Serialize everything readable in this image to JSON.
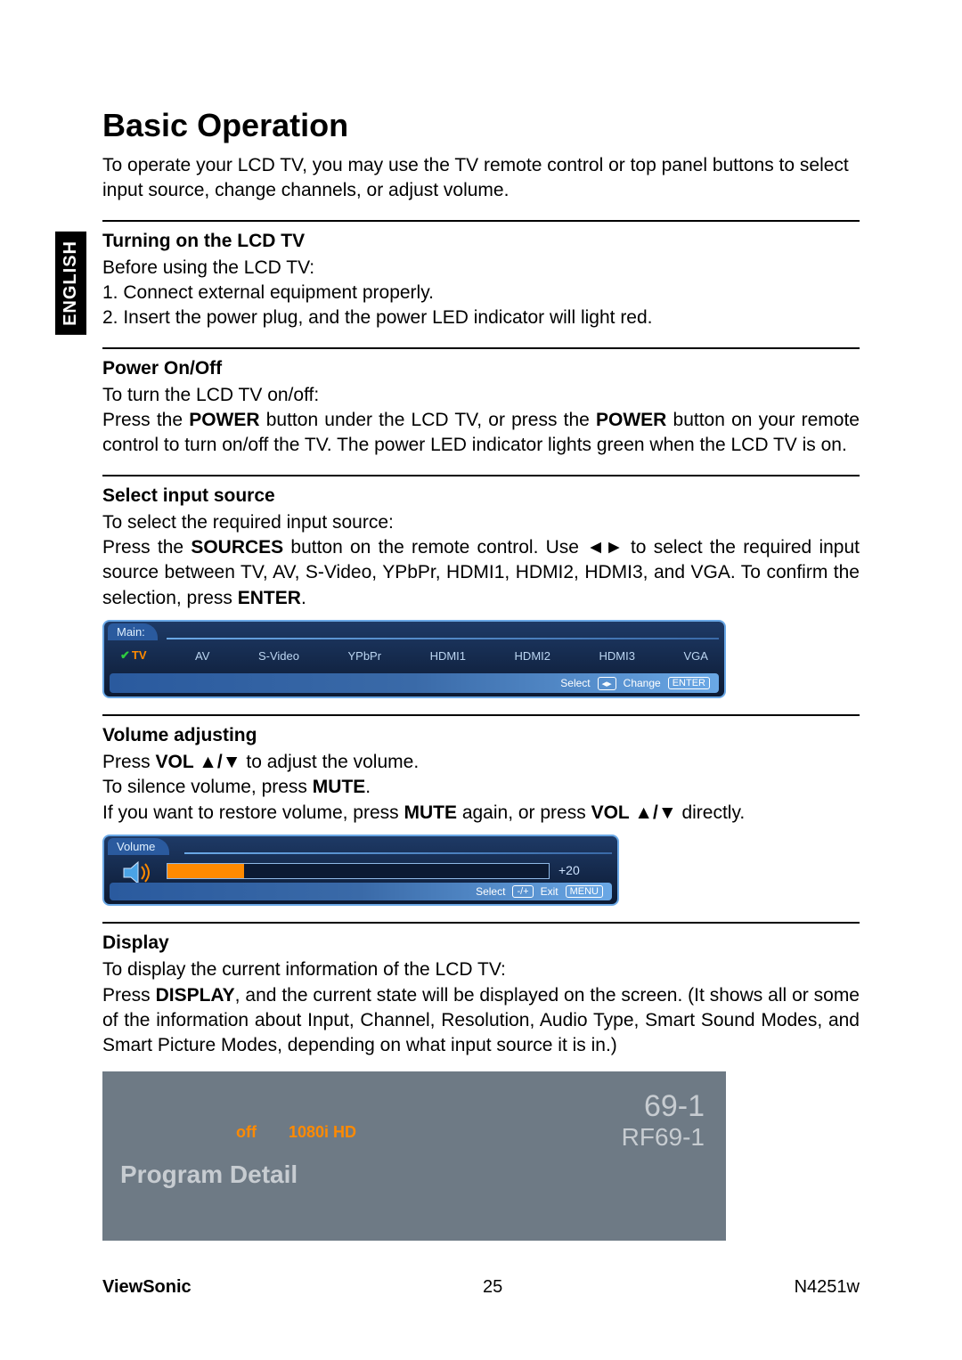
{
  "page": {
    "language_tab": "ENGLISH",
    "title": "Basic Operation",
    "intro": "To operate your LCD TV, you may use the TV remote control or top panel buttons to select input source, change channels, or adjust volume.",
    "brand": "ViewSonic",
    "page_number": "25",
    "model": "N4251w"
  },
  "sections": {
    "turning_on": {
      "heading": "Turning on the LCD TV",
      "line0": "Before using the LCD TV:",
      "line1": "1. Connect external equipment properly.",
      "line2": "2. Insert the power plug, and the power LED indicator will light red."
    },
    "power": {
      "heading": "Power On/Off",
      "line0": "To turn the LCD TV on/off:",
      "para_pre": "Press the ",
      "bold1": "POWER",
      "para_mid": " button under the LCD TV, or press the ",
      "bold2": "POWER",
      "para_post": " button on your remote control to turn on/off the TV. The power LED indicator lights green when the LCD TV is on."
    },
    "source": {
      "heading": "Select input source",
      "line0": "To select the required input source:",
      "para_pre": "Press the ",
      "bold1": "SOURCES",
      "para_mid": " button on the remote control. Use ◄► to select the required input source between TV, AV, S-Video, YPbPr, HDMI1,  HDMI2,  HDMI3, and VGA. To confirm the selection, press ",
      "bold2": "ENTER",
      "para_post": "."
    },
    "volume": {
      "heading": "Volume adjusting",
      "l1_pre": "Press ",
      "l1_bold": "VOL ▲/▼",
      "l1_post": " to adjust the volume.",
      "l2_pre": "To silence volume, press ",
      "l2_bold": "MUTE",
      "l2_post": ".",
      "l3_pre": "If you want to restore volume, press ",
      "l3_bold1": "MUTE",
      "l3_mid": " again, or press ",
      "l3_bold2": "VOL ▲/▼",
      "l3_post": " directly."
    },
    "display": {
      "heading": "Display",
      "line0": "To display the current information of the LCD TV:",
      "para_pre": "Press ",
      "bold1": "DISPLAY",
      "para_post": ", and the current state will be displayed on the screen. (It shows all or some of the information about Input, Channel, Resolution, Audio Type, Smart Sound Modes, and Smart Picture Modes, depending on what input source it is in.)"
    }
  },
  "osd_source": {
    "tab_label": "Main:",
    "items": [
      "TV",
      "AV",
      "S-Video",
      "YPbPr",
      "HDMI1",
      "HDMI2",
      "HDMI3",
      "VGA"
    ],
    "selected_index": 0,
    "footer_select": "Select",
    "footer_select_key": "◂▸",
    "footer_change": "Change",
    "footer_change_key": "ENTER",
    "colors": {
      "border": "#6aa8e6",
      "bg_top": "#1e3a66",
      "bg_bottom": "#0c1a33",
      "sel_color": "#ff8a00",
      "item_color": "#bcd6f2",
      "check_color": "#2ecc40"
    }
  },
  "osd_volume": {
    "tab_label": "Volume",
    "value_text": "+20",
    "fill_percent": 20,
    "footer_select": "Select",
    "footer_select_key": "-/+",
    "footer_exit": "Exit",
    "footer_exit_key": "MENU",
    "colors": {
      "fill": "#ff8a00",
      "frame": "#8fb8e6"
    }
  },
  "display_box": {
    "status_off": "off",
    "resolution": "1080i HD",
    "channel_main": "69-1",
    "channel_sub": "RF69-1",
    "program_detail": "Program Detail",
    "colors": {
      "bg": "#6e7a85",
      "accent": "#ff8a00",
      "text": "#c7ccd1"
    }
  }
}
